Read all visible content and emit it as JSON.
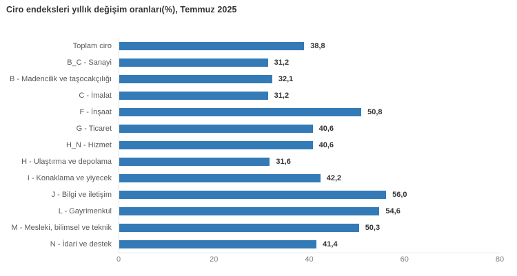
{
  "header": {
    "title": "Ciro endeksleri yıllık değişim oranları(%), Temmuz 2025"
  },
  "chart_data": {
    "type": "bar",
    "orientation": "horizontal",
    "title": "Ciro endeksleri yıllık değişim oranları(%), Temmuz 2025",
    "categories": [
      "Toplam ciro",
      "B_C - Sanayi",
      "B - Madencilik ve taşocakçılığı",
      "C - İmalat",
      "F - İnşaat",
      "G - Ticaret",
      "H_N - Hizmet",
      "H - Ulaştırma ve depolama",
      "I - Konaklama ve yiyecek",
      "J - Bilgi ve iletişim",
      "L - Gayrimenkul",
      "M - Mesleki, bilimsel ve teknik",
      "N - İdari ve destek"
    ],
    "values": [
      38.8,
      31.2,
      32.1,
      31.2,
      50.8,
      40.6,
      40.6,
      31.6,
      42.2,
      56.0,
      54.6,
      50.3,
      41.4
    ],
    "value_labels": [
      "38,8",
      "31,2",
      "32,1",
      "31,2",
      "50,8",
      "40,6",
      "40,6",
      "31,6",
      "42,2",
      "56,0",
      "54,6",
      "50,3",
      "41,4"
    ],
    "xlabel": "",
    "ylabel": "",
    "xlim": [
      0,
      80
    ],
    "x_ticks": [
      "0",
      "20",
      "40",
      "60",
      "80"
    ],
    "grid": false,
    "legend": "none",
    "bar_color": "#337ab7"
  },
  "colors": {
    "bar": "#337ab7",
    "title_text": "#333333",
    "category_text": "#595959",
    "value_text": "#333333",
    "tick_text": "#808080",
    "axis_line": "#e2e2e2",
    "background": "#ffffff"
  }
}
